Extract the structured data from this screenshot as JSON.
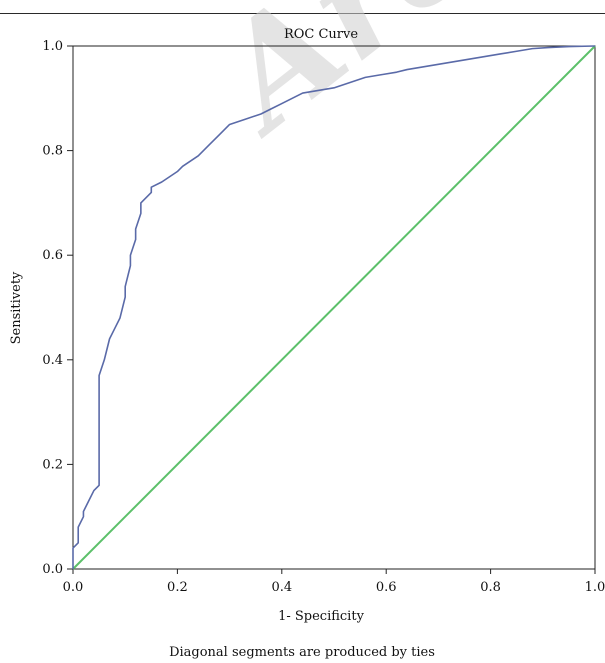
{
  "watermark": {
    "text": "Archive"
  },
  "chart_data": {
    "type": "line",
    "title": "ROC Curve",
    "xlabel": "1- Specificity",
    "ylabel": "Sensitivety",
    "footnote": "Diagonal segments are produced by ties",
    "xlim": [
      0,
      1
    ],
    "ylim": [
      0,
      1
    ],
    "xticks": [
      "0.0",
      "0.2",
      "0.4",
      "0.6",
      "0.8",
      "1.0"
    ],
    "yticks": [
      "0.0",
      "0.2",
      "0.4",
      "0.6",
      "0.8",
      "1.0"
    ],
    "grid": false,
    "series": [
      {
        "color": "#5a6aa8",
        "x": [
          0.0,
          0.0,
          0.01,
          0.01,
          0.02,
          0.02,
          0.03,
          0.04,
          0.05,
          0.05,
          0.06,
          0.07,
          0.08,
          0.09,
          0.1,
          0.1,
          0.11,
          0.11,
          0.12,
          0.12,
          0.13,
          0.13,
          0.14,
          0.15,
          0.15,
          0.17,
          0.2,
          0.21,
          0.24,
          0.26,
          0.28,
          0.3,
          0.33,
          0.36,
          0.38,
          0.4,
          0.42,
          0.44,
          0.47,
          0.5,
          0.53,
          0.56,
          0.59,
          0.62,
          0.64,
          0.67,
          0.7,
          0.73,
          0.76,
          0.79,
          0.82,
          0.85,
          0.88,
          0.91,
          0.95,
          1.0
        ],
        "y": [
          0.0,
          0.04,
          0.05,
          0.08,
          0.1,
          0.11,
          0.13,
          0.15,
          0.16,
          0.37,
          0.4,
          0.44,
          0.46,
          0.48,
          0.52,
          0.54,
          0.58,
          0.6,
          0.63,
          0.65,
          0.68,
          0.7,
          0.71,
          0.72,
          0.73,
          0.74,
          0.76,
          0.77,
          0.79,
          0.81,
          0.83,
          0.85,
          0.86,
          0.87,
          0.88,
          0.89,
          0.9,
          0.91,
          0.915,
          0.92,
          0.93,
          0.94,
          0.945,
          0.95,
          0.955,
          0.96,
          0.965,
          0.97,
          0.975,
          0.98,
          0.985,
          0.99,
          0.995,
          0.997,
          0.999,
          1.0
        ]
      },
      {
        "color": "#5cc06a",
        "x": [
          0,
          1
        ],
        "y": [
          0,
          1
        ]
      }
    ]
  }
}
